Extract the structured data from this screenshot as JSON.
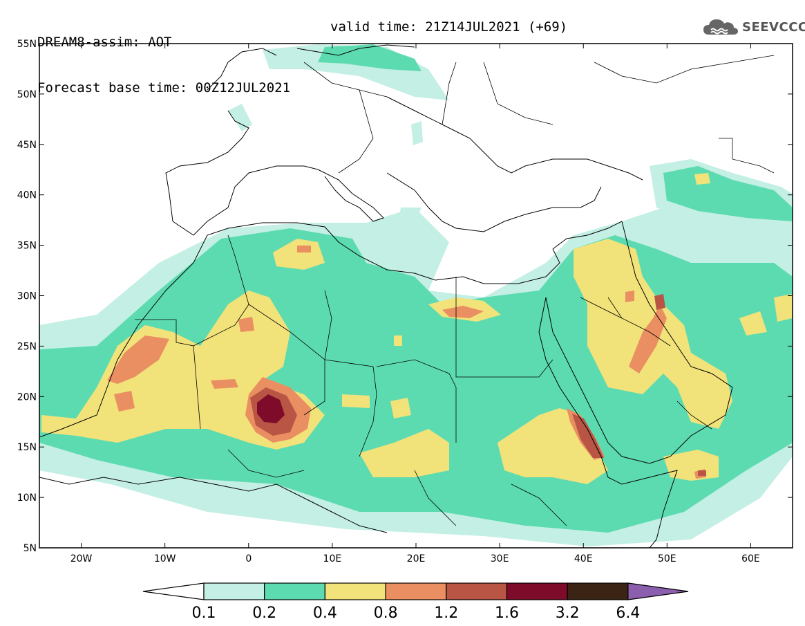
{
  "title": {
    "line1": "DREAM8-assim: AOT",
    "line2": "Forecast base time: 00Z12JUL2021",
    "valid": "valid time: 21Z14JUL2021 (+69)"
  },
  "logo": {
    "text": "SEEVCCC",
    "icon": "cloud-icon"
  },
  "map": {
    "lon_range": [
      -25,
      65
    ],
    "lat_range": [
      5,
      55
    ],
    "lat_ticks": [
      {
        "v": 55,
        "label": "55N"
      },
      {
        "v": 50,
        "label": "50N"
      },
      {
        "v": 45,
        "label": "45N"
      },
      {
        "v": 40,
        "label": "40N"
      },
      {
        "v": 35,
        "label": "35N"
      },
      {
        "v": 30,
        "label": "30N"
      },
      {
        "v": 25,
        "label": "25N"
      },
      {
        "v": 20,
        "label": "20N"
      },
      {
        "v": 15,
        "label": "15N"
      },
      {
        "v": 10,
        "label": "10N"
      },
      {
        "v": 5,
        "label": "5N"
      }
    ],
    "lon_ticks": [
      {
        "v": -20,
        "label": "20W"
      },
      {
        "v": -10,
        "label": "10W"
      },
      {
        "v": 0,
        "label": "0"
      },
      {
        "v": 10,
        "label": "10E"
      },
      {
        "v": 20,
        "label": "20E"
      },
      {
        "v": 30,
        "label": "30E"
      },
      {
        "v": 40,
        "label": "40E"
      },
      {
        "v": 50,
        "label": "50E"
      },
      {
        "v": 60,
        "label": "60E"
      }
    ]
  },
  "colorbar": {
    "levels": [
      "0.1",
      "0.2",
      "0.4",
      "0.8",
      "1.2",
      "1.6",
      "3.2",
      "6.4"
    ],
    "colors": [
      "#ffffff",
      "#c4efe4",
      "#5ddbb0",
      "#f2e27a",
      "#ea8f62",
      "#b95544",
      "#7e0b2a",
      "#3c2414",
      "#8b5fae"
    ]
  }
}
